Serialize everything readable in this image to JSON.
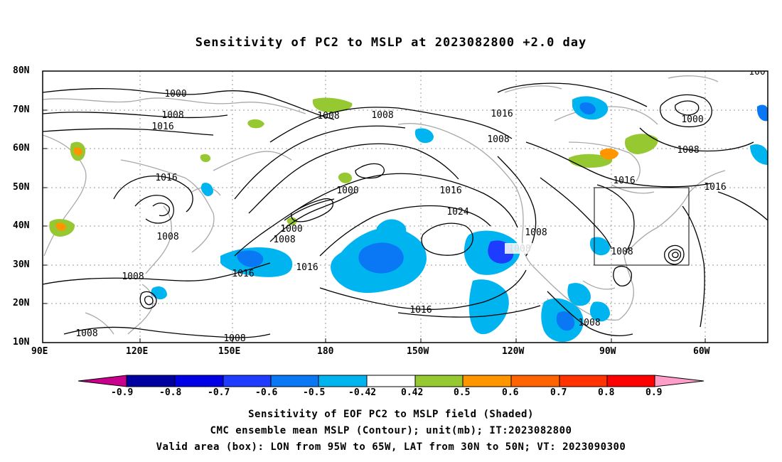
{
  "title": "Sensitivity of PC2 to MSLP at 2023082800 +2.0 day",
  "lat_labels": [
    "80N",
    "70N",
    "60N",
    "50N",
    "40N",
    "30N",
    "20N",
    "10N"
  ],
  "lon_labels": [
    "90E",
    "120E",
    "150E",
    "180",
    "150W",
    "120W",
    "90W",
    "60W"
  ],
  "colorbar": {
    "ticks": [
      "-0.9",
      "-0.8",
      "-0.7",
      "-0.6",
      "-0.5",
      "-0.42",
      "0.42",
      "0.5",
      "0.6",
      "0.7",
      "0.8",
      "0.9"
    ],
    "colors": [
      "#c8008c",
      "#0000a0",
      "#0000e6",
      "#1e3cff",
      "#0a78f5",
      "#00b4f0",
      "#ffffff",
      "#96c832",
      "#ff9600",
      "#ff6400",
      "#ff3200",
      "#ff0000",
      "#ff9ec8"
    ]
  },
  "contour_labels": [
    "1000",
    "1008",
    "1016",
    "1008",
    "1016",
    "1008",
    "1008",
    "1016",
    "1008",
    "1000",
    "1008",
    "1016",
    "1008",
    "1000",
    "1000",
    "1008",
    "1016",
    "1016",
    "1024",
    "1008",
    "1008",
    "1016",
    "1016",
    "1008",
    "1008",
    "1016",
    "1008",
    "1008",
    "100"
  ],
  "captions": [
    "Sensitivity of EOF PC2 to MSLP field (Shaded)",
    "CMC ensemble mean MSLP (Contour); unit(mb); IT:2023082800",
    "Valid area (box): LON from 95W to 65W, LAT from 30N to 50N; VT: 2023090300"
  ]
}
